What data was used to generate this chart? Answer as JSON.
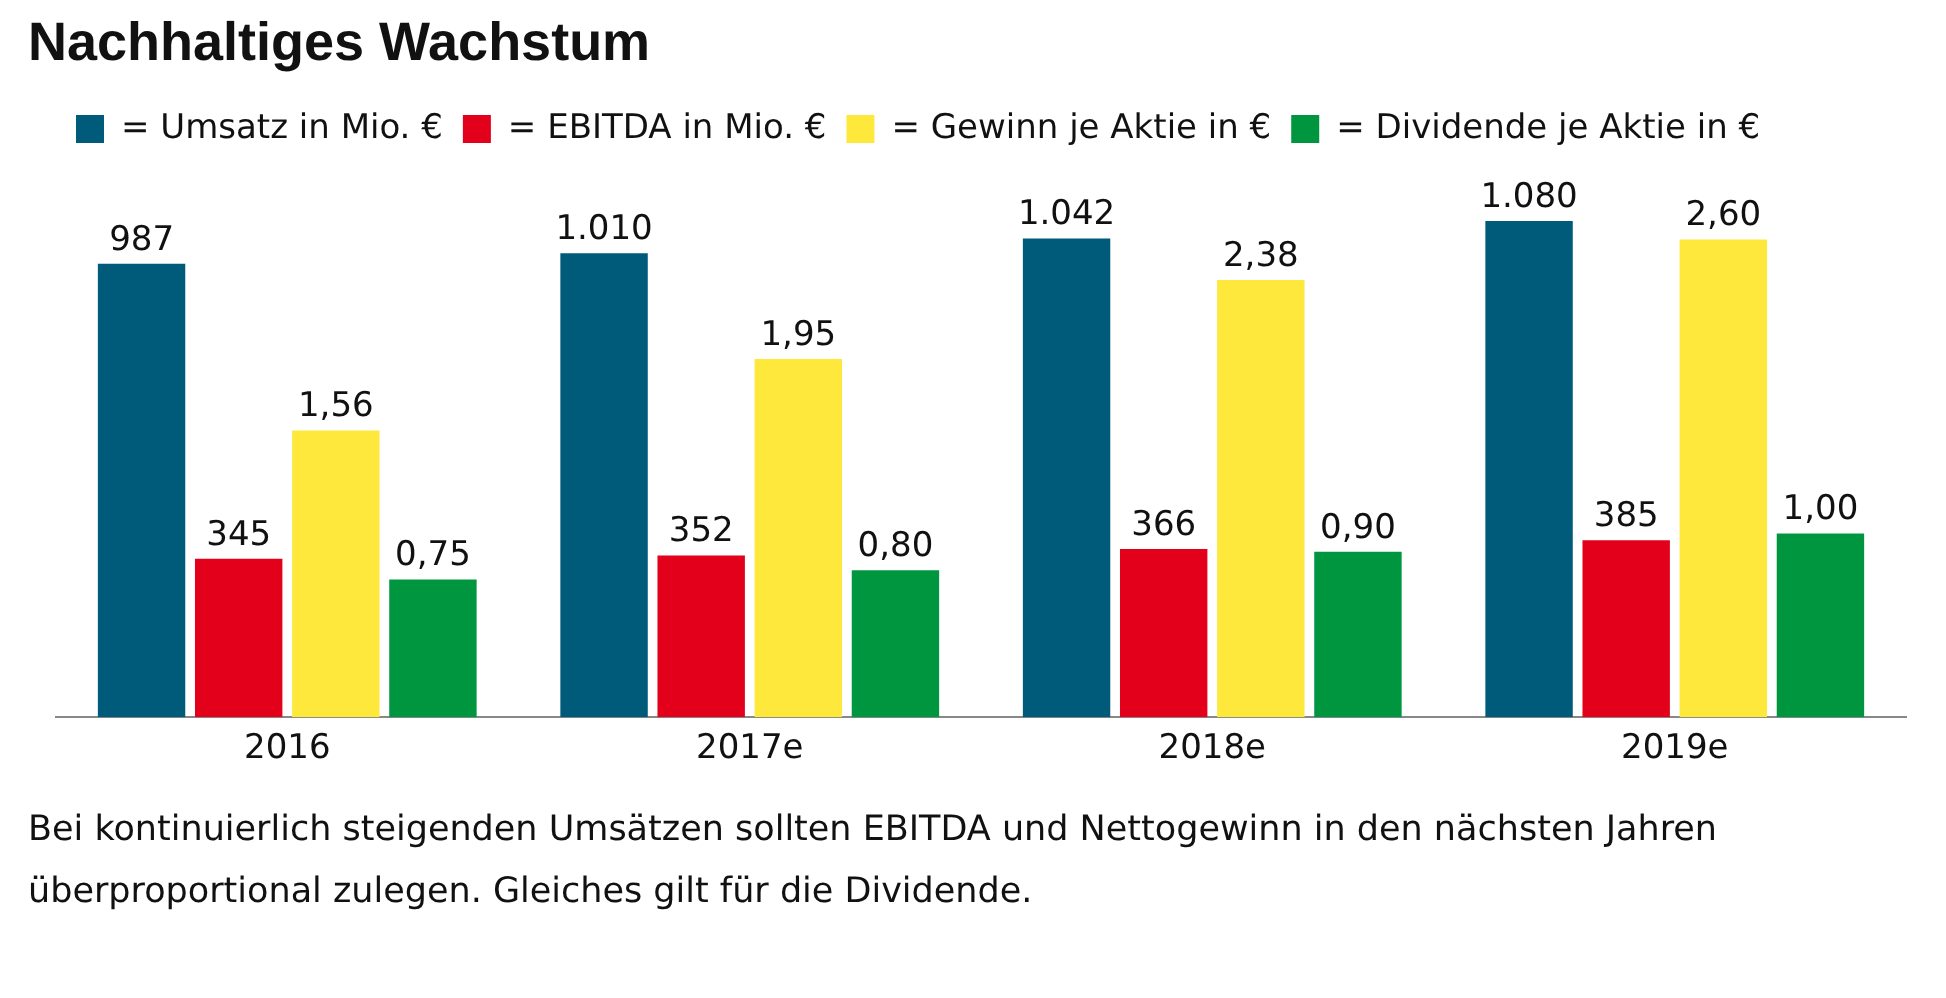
{
  "chart_data": {
    "type": "bar",
    "title": "Nachhaltiges Wachstum",
    "categories": [
      "2016",
      "2017e",
      "2018e",
      "2019e"
    ],
    "series": [
      {
        "name": "= Umsatz in Mio. €",
        "color": "#005a7a",
        "values": [
          987,
          1010,
          1042,
          1080
        ],
        "value_labels": [
          "987",
          "1.010",
          "1.042",
          "1.080"
        ]
      },
      {
        "name": "= EBITDA in Mio. €",
        "color": "#e2001a",
        "values": [
          345,
          352,
          366,
          385
        ],
        "value_labels": [
          "345",
          "352",
          "366",
          "385"
        ]
      },
      {
        "name": "= Gewinn je Aktie in €",
        "color": "#ffe83c",
        "values": [
          1.56,
          1.95,
          2.38,
          2.6
        ],
        "value_labels": [
          "1,56",
          "1,95",
          "2,38",
          "2,60"
        ],
        "axis": "y2"
      },
      {
        "name": "= Dividende je Aktie in €",
        "color": "#00963f",
        "values": [
          0.75,
          0.8,
          0.9,
          1.0
        ],
        "value_labels": [
          "0,75",
          "0,80",
          "0,90",
          "1,00"
        ],
        "axis": "y2"
      }
    ],
    "tick_labels": "x",
    "grid": false,
    "legend": "top left",
    "annotations": [
      "Bei kontinuierlich steigenden Umsätzen sollten EBITDA und Nettogewinn in den nächsten Jahren überproportional zulegen. Gleiches gilt für die Dividende."
    ]
  }
}
